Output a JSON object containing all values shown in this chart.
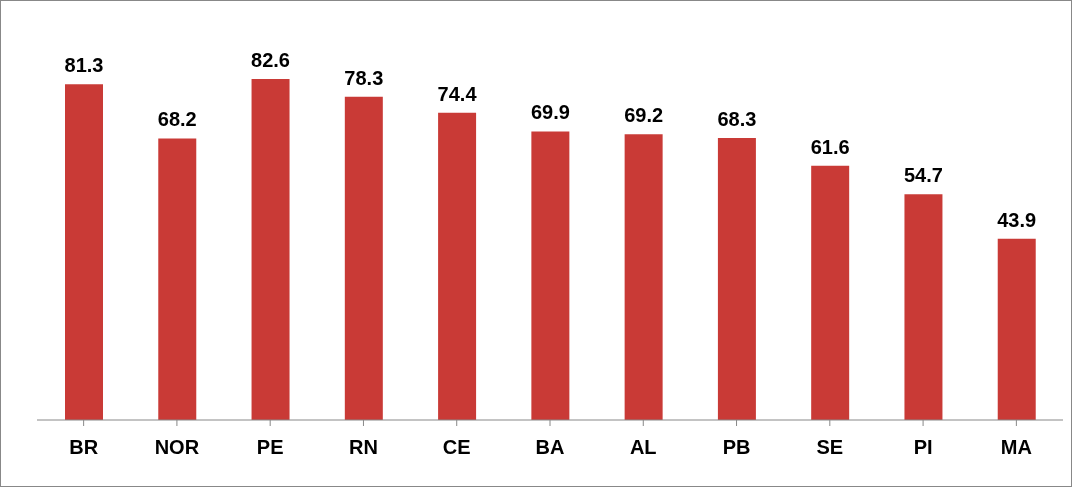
{
  "chart_data": {
    "type": "bar",
    "categories": [
      "BR",
      "NOR",
      "PE",
      "RN",
      "CE",
      "BA",
      "AL",
      "PB",
      "SE",
      "PI",
      "MA"
    ],
    "values": [
      81.3,
      68.2,
      82.6,
      78.3,
      74.4,
      69.9,
      69.2,
      68.3,
      61.6,
      54.7,
      43.9
    ],
    "color": "#c93a36",
    "data_labels": true
  }
}
